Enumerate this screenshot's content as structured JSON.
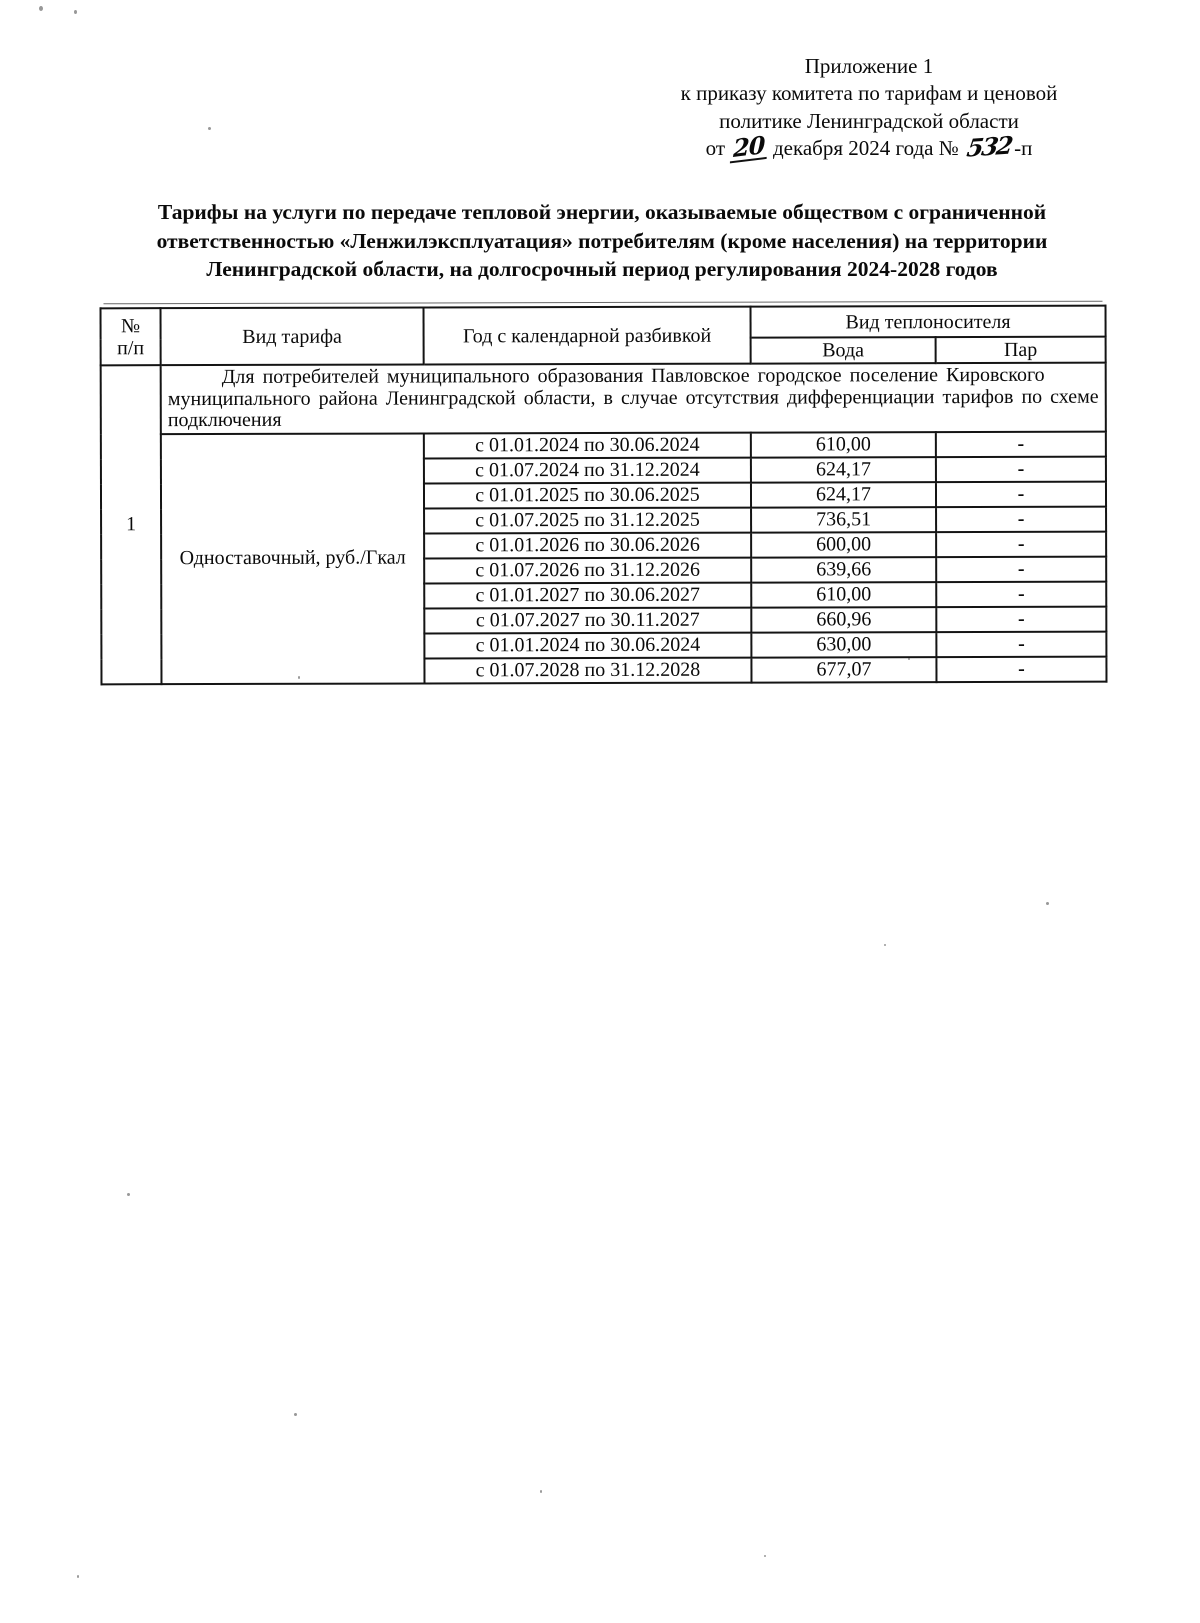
{
  "appendix": {
    "line1": "Приложение 1",
    "line2": "к приказу комитета по тарифам и ценовой",
    "line3": "политике Ленинградской области",
    "date_prefix": "от",
    "date_day_handwritten": "20",
    "date_rest": "декабря 2024 года №",
    "order_number_handwritten": "532",
    "order_suffix": "-п"
  },
  "title_lines": [
    "Тарифы на услуги по передаче тепловой энергии, оказываемые обществом с ограниченной",
    "ответственностью «Ленжилэксплуатация» потребителям (кроме населения) на территории",
    "Ленинградской области, на долгосрочный период регулирования 2024-2028 годов"
  ],
  "table": {
    "headers": {
      "num_top": "№",
      "num_bottom": "п/п",
      "tariff_type": "Вид тарифа",
      "year_breakdown": "Год с календарной разбивкой",
      "heat_carrier": "Вид теплоносителя",
      "water": "Вода",
      "steam": "Пар"
    },
    "group": {
      "num": "1",
      "description": "Для потребителей муниципального образования Павловское городское поселение Кировского муниципального района Ленинградской области, в случае отсутствия дифференциации тарифов по схеме подключения",
      "tariff_name": "Одноставочный, руб./Гкал"
    },
    "periods": [
      {
        "period": "с 01.01.2024 по 30.06.2024",
        "water": "610,00",
        "steam": "-"
      },
      {
        "period": "с 01.07.2024 по 31.12.2024",
        "water": "624,17",
        "steam": "-"
      },
      {
        "period": "с 01.01.2025 по 30.06.2025",
        "water": "624,17",
        "steam": "-"
      },
      {
        "period": "с 01.07.2025 по 31.12.2025",
        "water": "736,51",
        "steam": "-"
      },
      {
        "period": "с 01.01.2026 по 30.06.2026",
        "water": "600,00",
        "steam": "-"
      },
      {
        "period": "с 01.07.2026 по 31.12.2026",
        "water": "639,66",
        "steam": "-"
      },
      {
        "period": "с 01.01.2027 по 30.06.2027",
        "water": "610,00",
        "steam": "-"
      },
      {
        "period": "с 01.07.2027 по 30.11.2027",
        "water": "660,96",
        "steam": "-"
      },
      {
        "period": "с 01.01.2024 по 30.06.2024",
        "water": "630,00",
        "steam": "-"
      },
      {
        "period": "с 01.07.2028 по 31.12.2028",
        "water": "677,07",
        "steam": "-"
      }
    ]
  }
}
